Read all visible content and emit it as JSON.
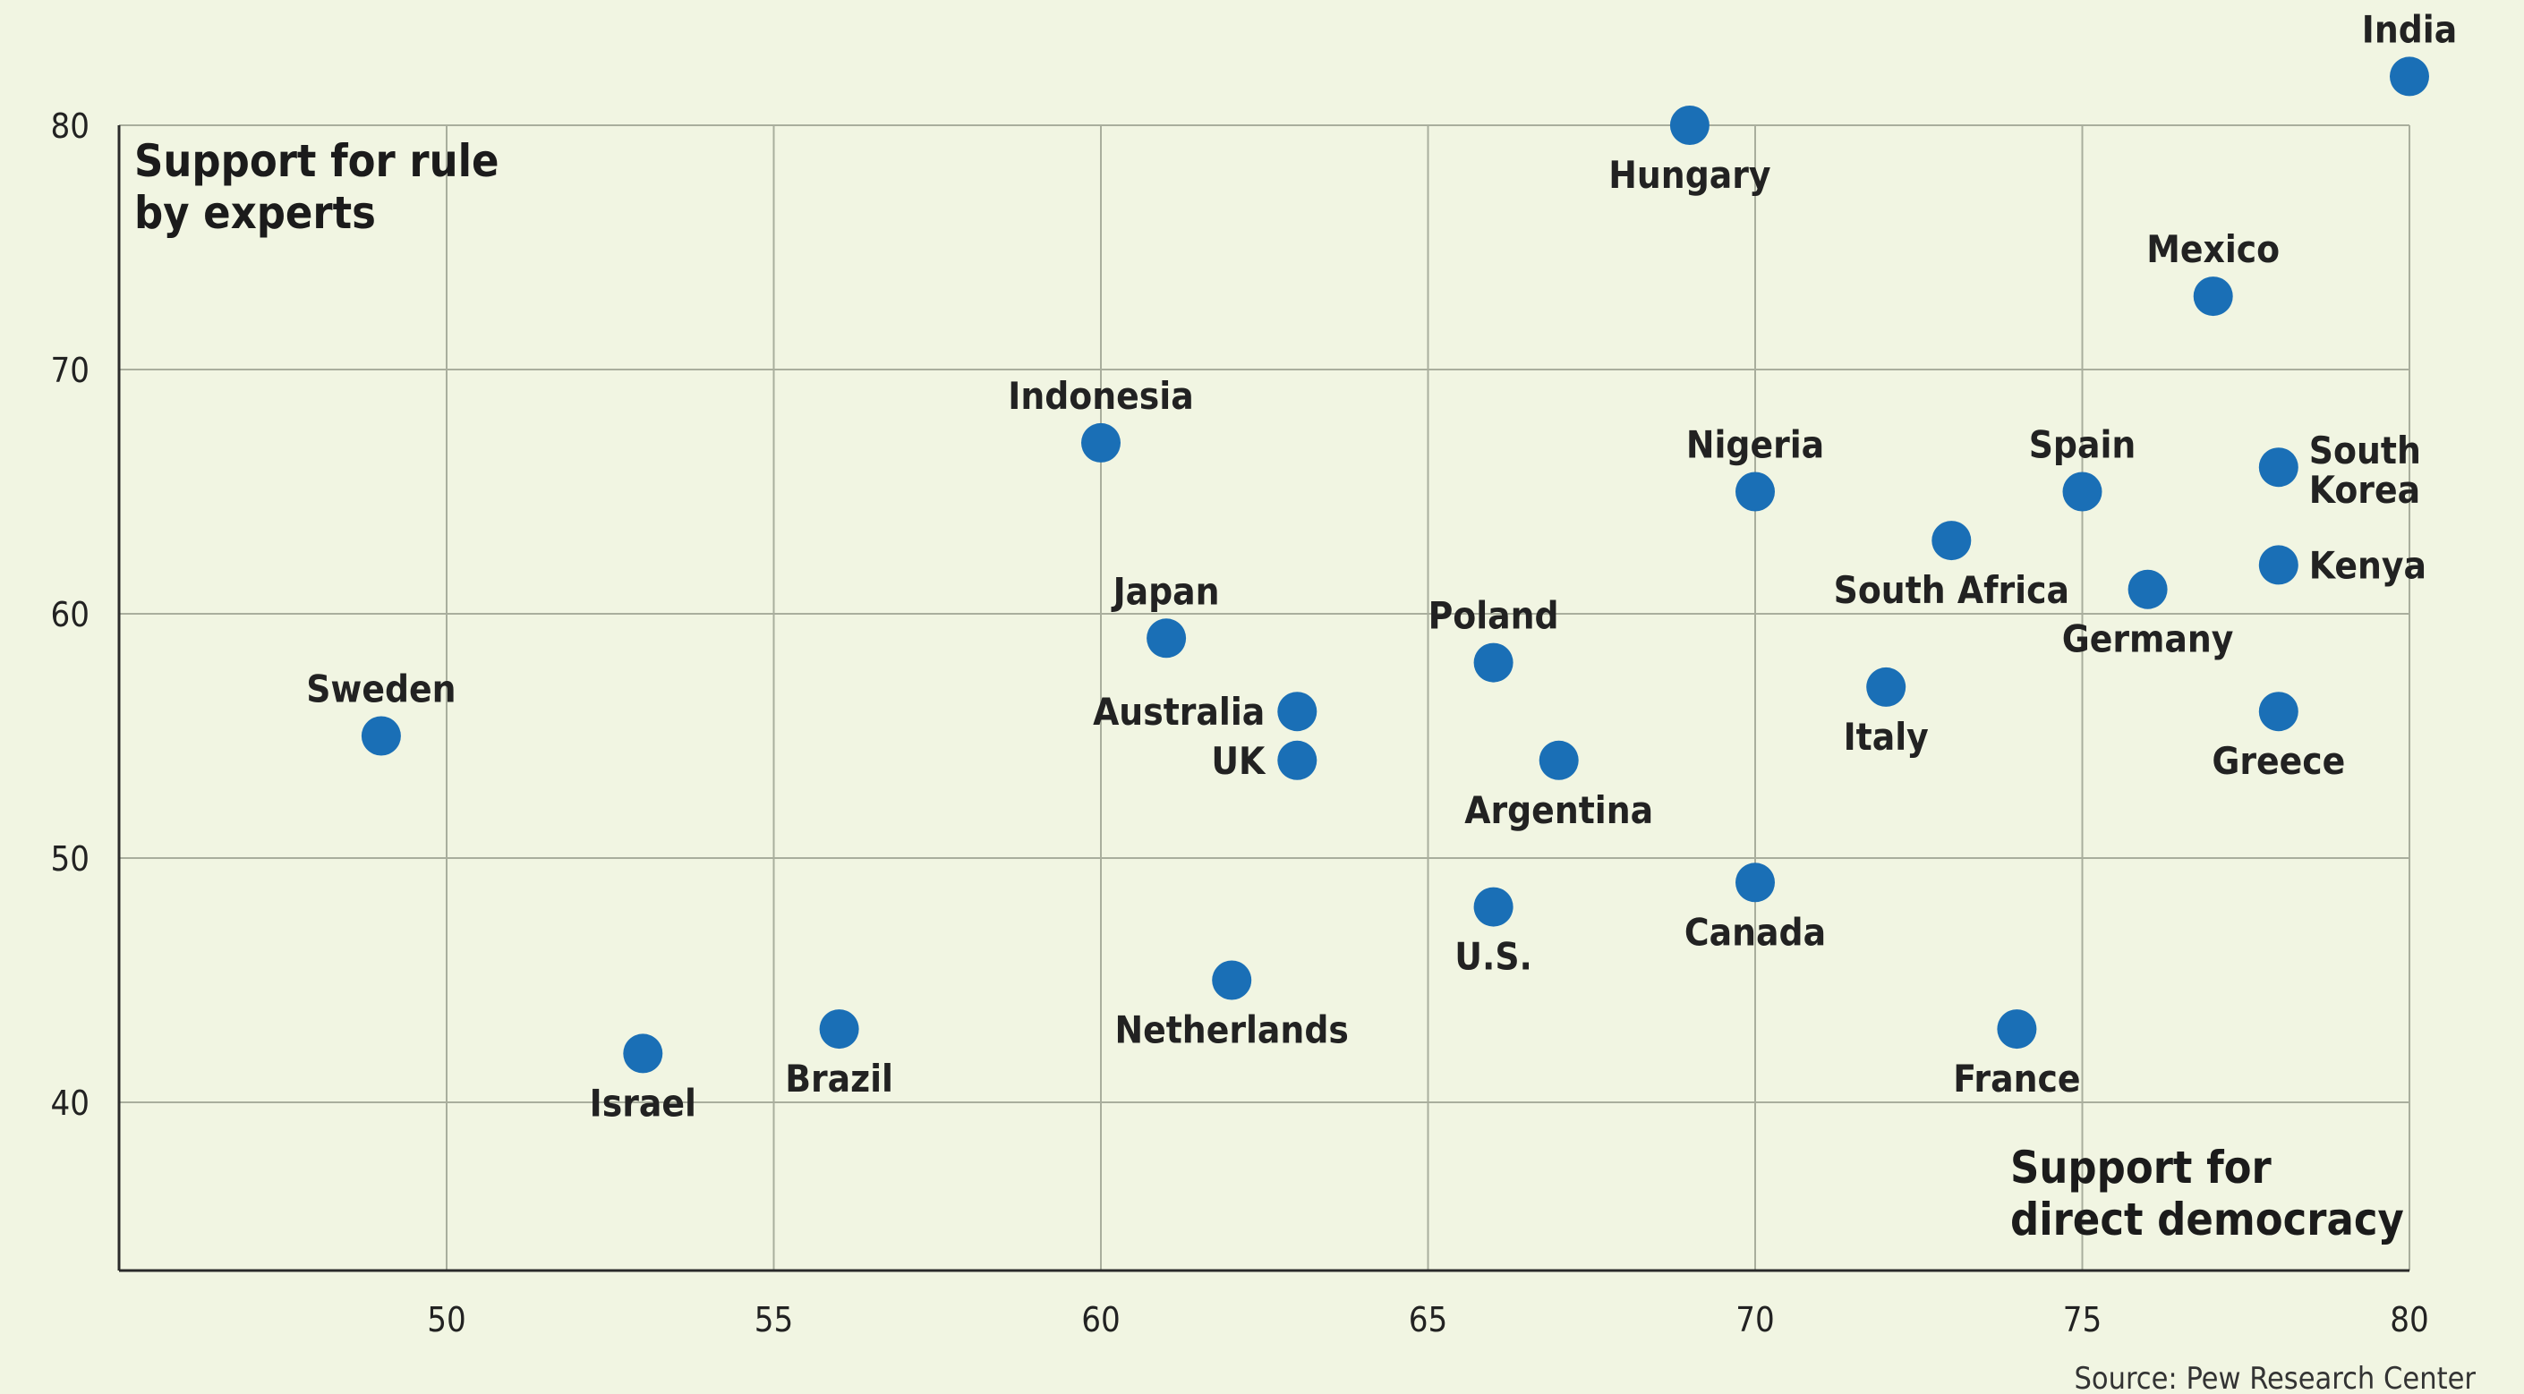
{
  "chart_data": {
    "type": "scatter",
    "ylabel": "Support for rule by experts",
    "ylabel_lines": [
      "Support for rule",
      "by experts"
    ],
    "xlabel": "Support for direct democracy",
    "xlabel_lines": [
      "Support for",
      "direct democracy"
    ],
    "xlim": [
      45,
      80
    ],
    "ylim": [
      33,
      80
    ],
    "xticks": [
      50,
      55,
      60,
      65,
      70,
      75,
      80
    ],
    "yticks": [
      40,
      50,
      60,
      70,
      80
    ],
    "grid": true,
    "marker_color": "#1a6fb6",
    "source": "Source: Pew Research Center",
    "points": [
      {
        "label": "India",
        "x": 80,
        "y": 82,
        "label_pos": "above"
      },
      {
        "label": "Hungary",
        "x": 69,
        "y": 80,
        "label_pos": "below"
      },
      {
        "label": "Mexico",
        "x": 77,
        "y": 73,
        "label_pos": "above"
      },
      {
        "label": "Indonesia",
        "x": 60,
        "y": 67,
        "label_pos": "above"
      },
      {
        "label": "Nigeria",
        "x": 70,
        "y": 65,
        "label_pos": "above"
      },
      {
        "label": "Spain",
        "x": 75,
        "y": 65,
        "label_pos": "above"
      },
      {
        "label": "South Korea",
        "x": 78,
        "y": 66,
        "label_pos": "right-two-line"
      },
      {
        "label": "South Africa",
        "x": 73,
        "y": 63,
        "label_pos": "below"
      },
      {
        "label": "Kenya",
        "x": 78,
        "y": 62,
        "label_pos": "right"
      },
      {
        "label": "Germany",
        "x": 76,
        "y": 61,
        "label_pos": "below"
      },
      {
        "label": "Japan",
        "x": 61,
        "y": 59,
        "label_pos": "above"
      },
      {
        "label": "Poland",
        "x": 66,
        "y": 58,
        "label_pos": "above"
      },
      {
        "label": "Sweden",
        "x": 49,
        "y": 55,
        "label_pos": "above"
      },
      {
        "label": "Australia",
        "x": 63,
        "y": 56,
        "label_pos": "left"
      },
      {
        "label": "UK",
        "x": 63,
        "y": 54,
        "label_pos": "left"
      },
      {
        "label": "Italy",
        "x": 72,
        "y": 57,
        "label_pos": "below"
      },
      {
        "label": "Greece",
        "x": 78,
        "y": 56,
        "label_pos": "below"
      },
      {
        "label": "Argentina",
        "x": 67,
        "y": 54,
        "label_pos": "below"
      },
      {
        "label": "Canada",
        "x": 70,
        "y": 49,
        "label_pos": "below"
      },
      {
        "label": "U.S.",
        "x": 66,
        "y": 48,
        "label_pos": "below"
      },
      {
        "label": "Netherlands",
        "x": 62,
        "y": 45,
        "label_pos": "below"
      },
      {
        "label": "Brazil",
        "x": 56,
        "y": 43,
        "label_pos": "below"
      },
      {
        "label": "France",
        "x": 74,
        "y": 43,
        "label_pos": "below"
      },
      {
        "label": "Israel",
        "x": 53,
        "y": 42,
        "label_pos": "below"
      }
    ]
  }
}
